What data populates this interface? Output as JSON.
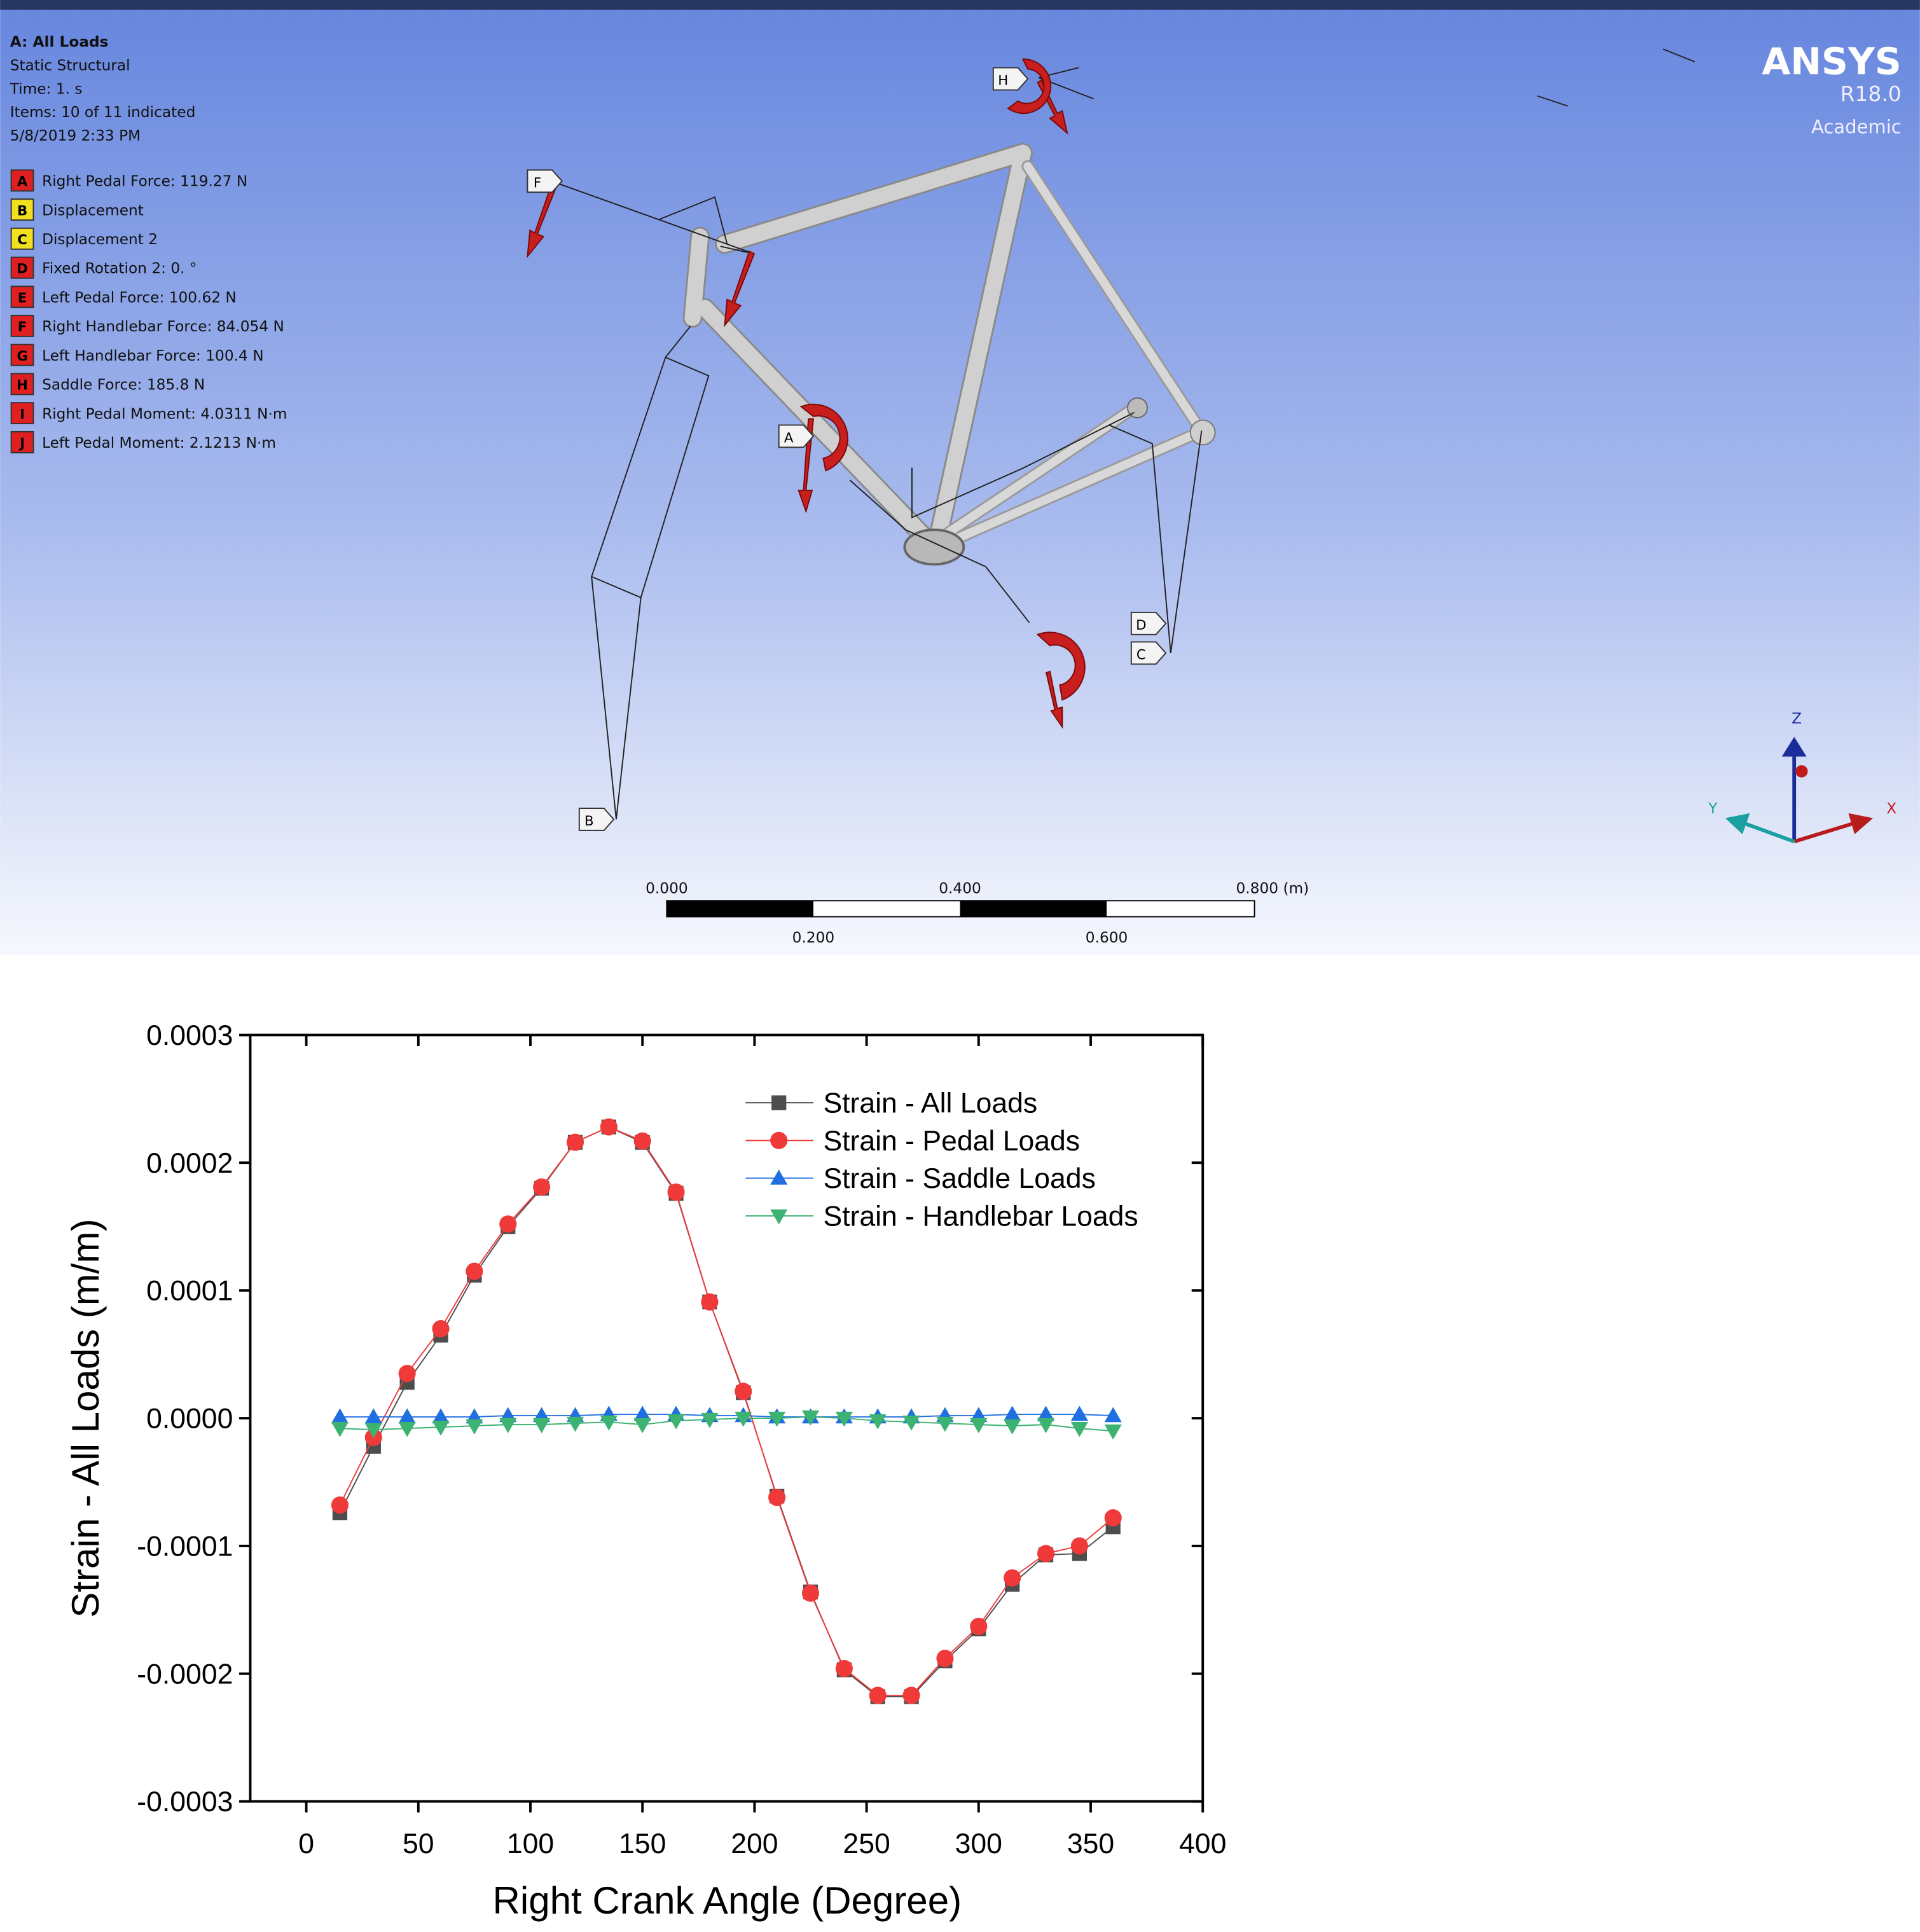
{
  "viewer": {
    "title": "A: All Loads",
    "analysis": "Static Structural",
    "time": "Time: 1. s",
    "items": "Items: 10 of 11 indicated",
    "date": "5/8/2019 2:33 PM",
    "loads": [
      {
        "key": "A",
        "label": "Right Pedal Force: 119.27 N",
        "color": "#e02020"
      },
      {
        "key": "B",
        "label": "Displacement",
        "color": "#f0e020"
      },
      {
        "key": "C",
        "label": "Displacement 2",
        "color": "#f0e020"
      },
      {
        "key": "D",
        "label": "Fixed Rotation 2: 0. °",
        "color": "#e02020"
      },
      {
        "key": "E",
        "label": "Left Pedal Force: 100.62 N",
        "color": "#e02020"
      },
      {
        "key": "F",
        "label": "Right Handlebar Force: 84.054 N",
        "color": "#e02020"
      },
      {
        "key": "G",
        "label": "Left Handlebar Force: 100.4 N",
        "color": "#e02020"
      },
      {
        "key": "H",
        "label": "Saddle Force: 185.8 N",
        "color": "#e02020"
      },
      {
        "key": "I",
        "label": "Right Pedal Moment: 4.0311 N·m",
        "color": "#e02020"
      },
      {
        "key": "J",
        "label": "Left Pedal Moment: 2.1213 N·m",
        "color": "#e02020"
      }
    ],
    "logo": "ANSYS",
    "version": "R18.0",
    "edition": "Academic",
    "scale_top": [
      "0.000",
      "0.400",
      "0.800 (m)"
    ],
    "scale_bottom": [
      "0.200",
      "0.600"
    ],
    "triad": [
      "Z",
      "Y",
      "X"
    ],
    "markers": [
      "F",
      "H",
      "A",
      "D",
      "C",
      "B"
    ]
  },
  "chart_data": {
    "type": "line",
    "xlabel": "Right Crank Angle (Degree)",
    "ylabel": "Strain - All Loads (m/m)",
    "xlim": [
      -25,
      400
    ],
    "ylim": [
      -0.0003,
      0.0003
    ],
    "xticks": [
      0,
      50,
      100,
      150,
      200,
      250,
      300,
      350,
      400
    ],
    "yticks": [
      -0.0003,
      -0.0002,
      -0.0001,
      {
        "value": 0,
        "label": "0.0000"
      },
      0.0001,
      0.0002,
      0.0003
    ],
    "x": [
      15,
      30,
      45,
      60,
      75,
      90,
      105,
      120,
      135,
      150,
      165,
      180,
      195,
      210,
      225,
      240,
      255,
      270,
      285,
      300,
      315,
      330,
      345,
      360
    ],
    "series": [
      {
        "name": "Strain - All Loads",
        "color": "#4d4d4d",
        "marker": "square",
        "values": [
          -7.4e-05,
          -2.2e-05,
          2.8e-05,
          6.5e-05,
          0.000112,
          0.00015,
          0.00018,
          0.000216,
          0.000228,
          0.000216,
          0.000176,
          9.1e-05,
          2e-05,
          -6.1e-05,
          -0.000136,
          -0.000197,
          -0.000218,
          -0.000218,
          -0.00019,
          -0.000165,
          -0.00013,
          -0.000107,
          -0.000106,
          -8.5e-05
        ]
      },
      {
        "name": "Strain - Pedal Loads",
        "color": "#f03a3a",
        "marker": "circle",
        "values": [
          -6.8e-05,
          -1.5e-05,
          3.5e-05,
          7e-05,
          0.000115,
          0.000152,
          0.000181,
          0.000216,
          0.000228,
          0.000217,
          0.000177,
          9.1e-05,
          2.1e-05,
          -6.2e-05,
          -0.000137,
          -0.000196,
          -0.000217,
          -0.000217,
          -0.000188,
          -0.000163,
          -0.000125,
          -0.000106,
          -0.0001,
          -7.8e-05
        ]
      },
      {
        "name": "Strain - Saddle Loads",
        "color": "#1f6fe0",
        "marker": "triangle-up",
        "values": [
          1e-06,
          1e-06,
          1e-06,
          1e-06,
          1e-06,
          2e-06,
          2e-06,
          2e-06,
          3e-06,
          3e-06,
          3e-06,
          2e-06,
          2e-06,
          1e-06,
          1e-06,
          1e-06,
          1e-06,
          1e-06,
          2e-06,
          2e-06,
          3e-06,
          3e-06,
          3e-06,
          2e-06
        ]
      },
      {
        "name": "Strain - Handlebar Loads",
        "color": "#3cb371",
        "marker": "triangle-down",
        "values": [
          -8e-06,
          -9e-06,
          -8e-06,
          -7e-06,
          -6e-06,
          -5e-06,
          -5e-06,
          -4e-06,
          -3e-06,
          -5e-06,
          -2e-06,
          -1e-06,
          0,
          0,
          1e-06,
          0,
          -2e-06,
          -3e-06,
          -4e-06,
          -5e-06,
          -6e-06,
          -5e-06,
          -8e-06,
          -1e-05
        ]
      }
    ]
  }
}
